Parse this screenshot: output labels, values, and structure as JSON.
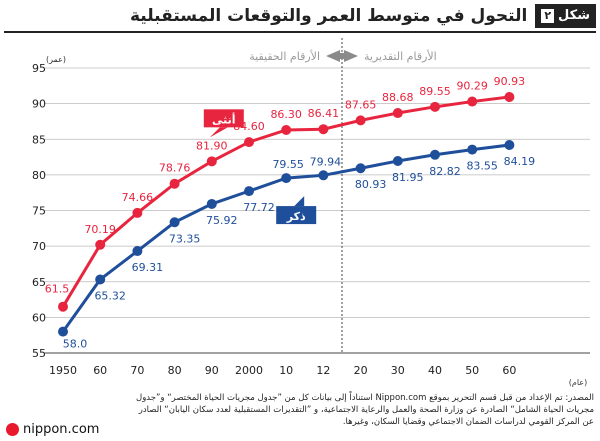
{
  "figure": {
    "badge_label": "شكل",
    "badge_number": "٢",
    "title": "التحول في متوسط العمر والتوقعات المستقبلية"
  },
  "chart_data": {
    "type": "line",
    "title": "التحول في متوسط العمر والتوقعات المستقبلية",
    "ylabel": "(عمر)",
    "xlabel": "(عام)",
    "ylim": [
      55,
      95
    ],
    "yticks": [
      55,
      60,
      65,
      70,
      75,
      80,
      85,
      90,
      95
    ],
    "grid": true,
    "categories": [
      "1950",
      "60",
      "70",
      "80",
      "90",
      "2000",
      "10",
      "12",
      "20",
      "30",
      "40",
      "50",
      "60"
    ],
    "series": [
      {
        "name": "أنثى",
        "color": "#e8253f",
        "values": [
          61.5,
          70.19,
          74.66,
          78.76,
          81.9,
          84.6,
          86.3,
          86.41,
          87.65,
          88.68,
          89.55,
          90.29,
          90.93
        ],
        "labels": [
          "61.5",
          "70.19",
          "74.66",
          "78.76",
          "81.90",
          "84.60",
          "86.30",
          "86.41",
          "87.65",
          "88.68",
          "89.55",
          "90.29",
          "90.93"
        ]
      },
      {
        "name": "ذكر",
        "color": "#1f4f9a",
        "values": [
          58.0,
          65.32,
          69.31,
          73.35,
          75.92,
          77.72,
          79.55,
          79.94,
          80.93,
          81.95,
          82.82,
          83.55,
          84.19
        ],
        "labels": [
          "58.0",
          "65.32",
          "69.31",
          "73.35",
          "75.92",
          "77.72",
          "79.55",
          "79.94",
          "80.93",
          "81.95",
          "82.82",
          "83.55",
          "84.19"
        ]
      }
    ],
    "annotations": {
      "actual_label": "الأرقام الحقيقية",
      "estimated_label": "الأرقام التقديرية",
      "divider_after_category": "12"
    }
  },
  "source_text": "المصدر: تم الإعداد من قبل قسم التحرير بموقع Nippon.com استناداً إلى بيانات كل من ”جدول مجريات الحياة المختصر“ و”جدول مجريات الحياة الشامل“ الصادرة عن وزارة الصحة والعمل والرعاية الاجتماعية، و ”التقديرات المستقبلية لعدد سكان اليابان“ الصادر عن المركز القومي لدراسات الضمان الاجتماعي وقضايا السكان، وغيرها.",
  "logo_text": "nippon.com"
}
